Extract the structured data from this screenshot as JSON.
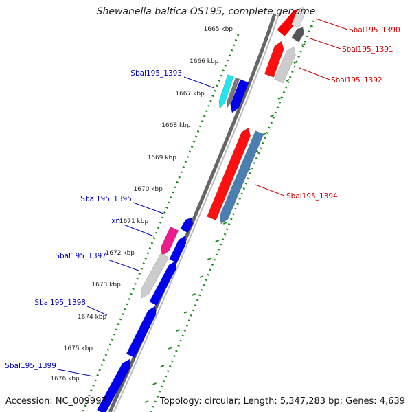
{
  "title": "Shewanella baltica OS195, complete genome",
  "accession": "Accession: NC_009997",
  "topology": "Topology: circular; Length: 5,347,283 bp; Genes: 4,639",
  "colors": {
    "forward_gene": "#ff0000",
    "reverse_gene": "#0000ff",
    "forward_label": "#cc0000",
    "reverse_label": "#0000bb",
    "tick": "#1a8a1a",
    "backbone": "#8a8a8a"
  },
  "kbp_ticks": [
    "1665 kbp",
    "1666 kbp",
    "1667 kbp",
    "1668 kbp",
    "1669 kbp",
    "1670 kbp",
    "1671 kbp",
    "1672 kbp",
    "1673 kbp",
    "1674 kbp",
    "1675 kbp",
    "1676 kbp"
  ],
  "forward_labels": [
    "Sbal195_1390",
    "Sbal195_1391",
    "Sbal195_1392",
    "Sbal195_1394"
  ],
  "reverse_labels": [
    "Sbal195_1393",
    "Sbal195_1395",
    "xni",
    "Sbal195_1397",
    "Sbal195_1398",
    "Sbal195_1399"
  ]
}
